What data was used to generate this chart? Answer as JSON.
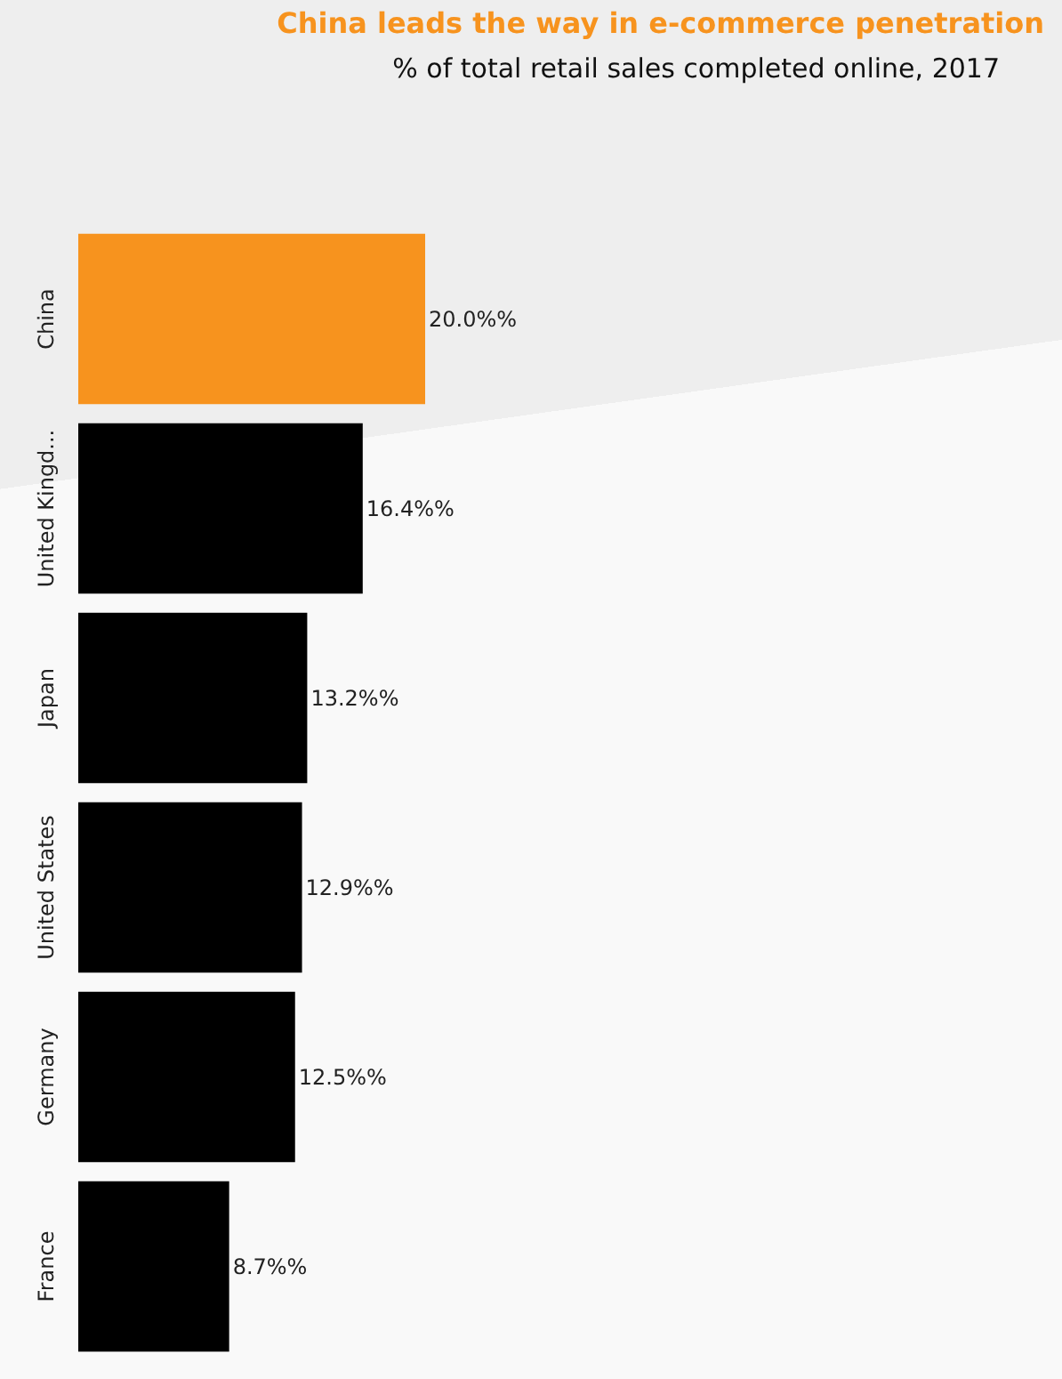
{
  "chart_data": {
    "type": "bar",
    "orientation": "horizontal",
    "title": "China leads the way in e-commerce penetration",
    "subtitle": "% of total retail sales completed online, 2017",
    "categories": [
      "China",
      "United Kingd...",
      "Japan",
      "United States",
      "Germany",
      "France"
    ],
    "values": [
      20.0,
      16.4,
      13.2,
      12.9,
      12.5,
      8.7
    ],
    "colors": [
      "#f7931e",
      "#000000",
      "#000000",
      "#000000",
      "#000000",
      "#000000"
    ],
    "value_labels": [
      "20.0%%",
      "16.4%%",
      "13.2%%",
      "12.9%%",
      "12.5%%",
      "8.7%%"
    ]
  }
}
